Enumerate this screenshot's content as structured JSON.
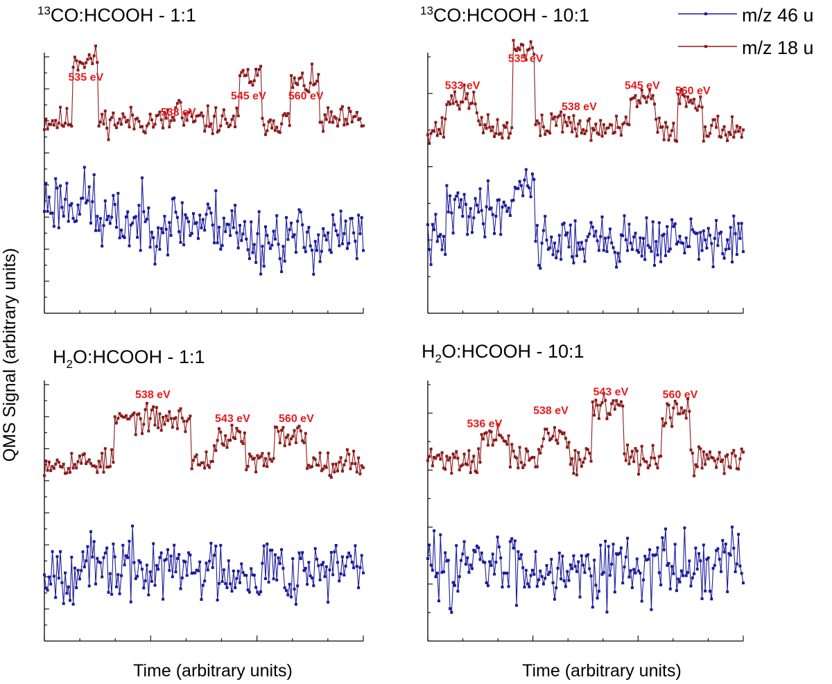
{
  "chart_data": {
    "type": "line",
    "ylabel": "QMS Signal (arbitrary units)",
    "xlabel": "Time (arbitrary units)",
    "legend": {
      "placement": "top-right",
      "entries": [
        {
          "name": "m/z 46 u",
          "color": "#1a1a9a"
        },
        {
          "name": "m/z 18 u",
          "color": "#8b1a1a"
        }
      ]
    },
    "annotation_color": "#e8191c",
    "panels": [
      {
        "id": "p1",
        "title": {
          "pre": "",
          "sup": "13",
          "main": "CO:HCOOH - 1:1",
          "sub": "",
          "post": ""
        },
        "n_points": 200,
        "x_minor_ticks": 9,
        "y_minor_ticks": 16,
        "series": [
          {
            "name": "m/z 18 u",
            "baseline": 2.4,
            "noise": 0.32,
            "seed": 11,
            "steps": [
              [
                0.09,
                0.17,
                2.3
              ],
              [
                0.41,
                0.43,
                0.6
              ],
              [
                0.61,
                0.68,
                1.6
              ],
              [
                0.77,
                0.86,
                1.4
              ]
            ]
          },
          {
            "name": "m/z 46 u",
            "baseline": -2.0,
            "noise": 0.75,
            "seed": 23,
            "steps": [
              [
                0.0,
                0.16,
                1.4
              ],
              [
                0.16,
                0.6,
                0.6
              ]
            ]
          }
        ],
        "annotations": [
          {
            "text": "535 eV",
            "x": 0.13,
            "y": 3.9
          },
          {
            "text": "538 eV",
            "x": 0.42,
            "y": 2.6
          },
          {
            "text": "545 eV",
            "x": 0.64,
            "y": 3.2
          },
          {
            "text": "560 eV",
            "x": 0.82,
            "y": 3.2
          }
        ]
      },
      {
        "id": "p2",
        "title": {
          "pre": "",
          "sup": "13",
          "main": "CO:HCOOH - 10:1",
          "sub": "",
          "post": ""
        },
        "n_points": 200,
        "x_minor_ticks": 9,
        "y_minor_ticks": 7,
        "series": [
          {
            "name": "m/z 18 u",
            "baseline": 2.1,
            "noise": 0.3,
            "seed": 37,
            "steps": [
              [
                0.06,
                0.16,
                1.1
              ],
              [
                0.27,
                0.34,
                3.0
              ],
              [
                0.39,
                0.45,
                0.4
              ],
              [
                0.64,
                0.72,
                1.1
              ],
              [
                0.79,
                0.87,
                1.1
              ]
            ]
          },
          {
            "name": "m/z 46 u",
            "baseline": -2.1,
            "noise": 0.6,
            "seed": 41,
            "steps": [
              [
                0.06,
                0.34,
                1.2
              ],
              [
                0.27,
                0.34,
                1.0
              ]
            ]
          }
        ],
        "annotations": [
          {
            "text": "533 eV",
            "x": 0.11,
            "y": 3.6
          },
          {
            "text": "535 eV",
            "x": 0.31,
            "y": 4.6
          },
          {
            "text": "538 eV",
            "x": 0.48,
            "y": 2.8
          },
          {
            "text": "545 eV",
            "x": 0.68,
            "y": 3.6
          },
          {
            "text": "560 eV",
            "x": 0.84,
            "y": 3.4
          }
        ]
      },
      {
        "id": "p3",
        "title": {
          "pre": "H",
          "sup": "",
          "main": "O:HCOOH - 1:1",
          "sub": "2",
          "post": ""
        },
        "n_points": 200,
        "x_minor_ticks": 9,
        "y_minor_ticks": 16,
        "series": [
          {
            "name": "m/z 18 u",
            "baseline": 1.9,
            "noise": 0.3,
            "seed": 53,
            "steps": [
              [
                0.22,
                0.46,
                1.6
              ],
              [
                0.53,
                0.63,
                0.9
              ],
              [
                0.72,
                0.82,
                1.0
              ]
            ]
          },
          {
            "name": "m/z 46 u",
            "baseline": -2.1,
            "noise": 0.75,
            "seed": 67,
            "steps": []
          }
        ],
        "annotations": [
          {
            "text": "538 eV",
            "x": 0.34,
            "y": 4.3
          },
          {
            "text": "543 eV",
            "x": 0.59,
            "y": 3.4
          },
          {
            "text": "560 eV",
            "x": 0.79,
            "y": 3.4
          }
        ]
      },
      {
        "id": "p4",
        "title": {
          "pre": "H",
          "sup": "",
          "main": "O:HCOOH - 10:1",
          "sub": "2",
          "post": ""
        },
        "n_points": 200,
        "x_minor_ticks": 9,
        "y_minor_ticks": 9,
        "series": [
          {
            "name": "m/z 18 u",
            "baseline": 2.0,
            "noise": 0.32,
            "seed": 71,
            "steps": [
              [
                0.17,
                0.26,
                0.8
              ],
              [
                0.36,
                0.45,
                0.9
              ],
              [
                0.52,
                0.62,
                2.0
              ],
              [
                0.74,
                0.83,
                1.7
              ]
            ]
          },
          {
            "name": "m/z 46 u",
            "baseline": -2.0,
            "noise": 0.8,
            "seed": 83,
            "steps": []
          }
        ],
        "annotations": [
          {
            "text": "536 eV",
            "x": 0.18,
            "y": 3.2
          },
          {
            "text": "538 eV",
            "x": 0.39,
            "y": 3.7
          },
          {
            "text": "543 eV",
            "x": 0.58,
            "y": 4.4
          },
          {
            "text": "560 eV",
            "x": 0.8,
            "y": 4.3
          }
        ]
      }
    ],
    "y_range": [
      -4.8,
      4.8
    ],
    "x_range": [
      0,
      1
    ]
  }
}
